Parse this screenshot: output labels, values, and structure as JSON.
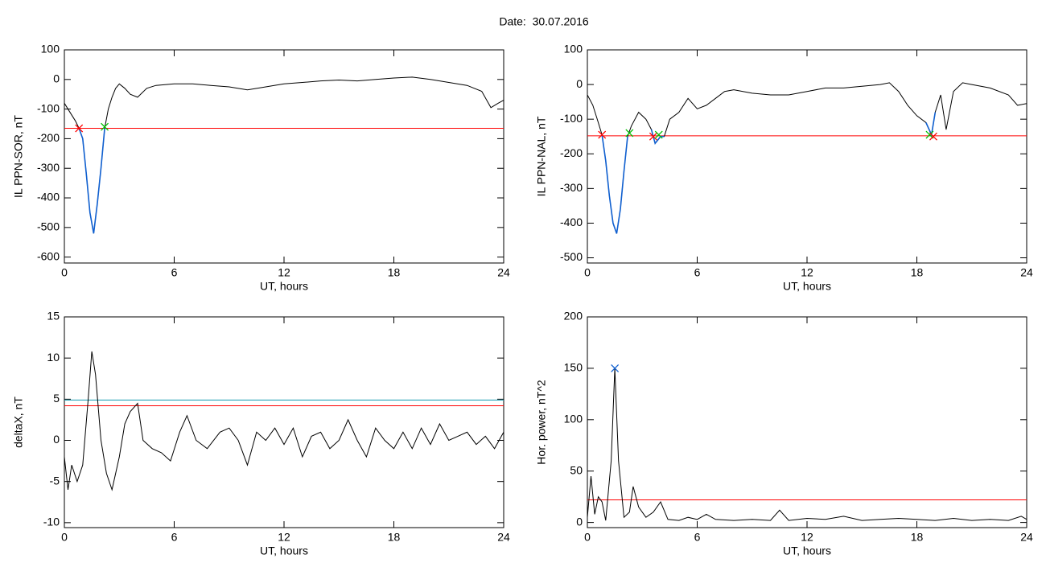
{
  "title": "Date:  30.07.2016",
  "chart_data": [
    {
      "type": "line",
      "ylabel": "IL PPN-SOR, nT",
      "xlabel": "UT, hours",
      "xlim": [
        0,
        24
      ],
      "xticks": [
        0,
        6,
        12,
        18,
        24
      ],
      "ylim": [
        -620,
        100
      ],
      "yticks": [
        100,
        0,
        -100,
        -200,
        -300,
        -400,
        -500,
        -600
      ],
      "x": [
        0,
        0.3,
        0.6,
        0.8,
        1.0,
        1.2,
        1.4,
        1.6,
        1.8,
        2.0,
        2.2,
        2.4,
        2.6,
        2.8,
        3.0,
        3.3,
        3.6,
        4.0,
        4.5,
        5,
        6,
        7,
        8,
        9,
        10,
        11,
        12,
        13,
        14,
        15,
        16,
        17,
        18,
        19,
        20,
        21,
        22,
        22.8,
        23.3,
        23.7,
        24
      ],
      "series": [
        {
          "color": "#000000",
          "values": [
            -80,
            -110,
            -140,
            -165,
            -200,
            -320,
            -450,
            -520,
            -420,
            -300,
            -165,
            -100,
            -60,
            -30,
            -15,
            -30,
            -50,
            -60,
            -30,
            -20,
            -15,
            -15,
            -20,
            -25,
            -35,
            -25,
            -15,
            -10,
            -5,
            -2,
            -5,
            0,
            5,
            8,
            0,
            -10,
            -20,
            -40,
            -95,
            -80,
            -70
          ]
        },
        {
          "color": "#1060d0",
          "values": [
            null,
            null,
            null,
            -165,
            -200,
            -320,
            -450,
            -520,
            -420,
            -300,
            -165,
            null,
            null,
            null,
            null,
            null,
            null,
            null,
            null,
            null,
            null,
            null,
            null,
            null,
            null,
            null,
            null,
            null,
            null,
            null,
            null,
            null,
            null,
            null,
            null,
            null,
            null,
            null,
            null,
            null,
            null
          ]
        }
      ],
      "hlines": [
        {
          "value": -165,
          "color": "#ff0000"
        }
      ],
      "markers": [
        {
          "x": 0.8,
          "y": -165,
          "color": "#ff0000"
        },
        {
          "x": 2.2,
          "y": -160,
          "color": "#00c000"
        }
      ]
    },
    {
      "type": "line",
      "ylabel": "IL PPN-NAL, nT",
      "xlabel": "UT, hours",
      "xlim": [
        0,
        24
      ],
      "xticks": [
        0,
        6,
        12,
        18,
        24
      ],
      "ylim": [
        -515,
        100
      ],
      "yticks": [
        100,
        0,
        -100,
        -200,
        -300,
        -400,
        -500
      ],
      "x": [
        0,
        0.3,
        0.6,
        0.8,
        1.0,
        1.2,
        1.4,
        1.6,
        1.8,
        2.0,
        2.2,
        2.4,
        2.8,
        3.2,
        3.5,
        3.7,
        4.0,
        4.2,
        4.5,
        5,
        5.5,
        6,
        6.5,
        7,
        7.5,
        8,
        9,
        10,
        11,
        12,
        13,
        14,
        15,
        16,
        16.5,
        17,
        17.5,
        18,
        18.5,
        18.8,
        19,
        19.3,
        19.6,
        20,
        20.5,
        21,
        22,
        23,
        23.5,
        24
      ],
      "series": [
        {
          "color": "#000000",
          "values": [
            -30,
            -60,
            -110,
            -145,
            -220,
            -320,
            -400,
            -430,
            -360,
            -250,
            -150,
            -120,
            -80,
            -100,
            -130,
            -170,
            -150,
            -150,
            -100,
            -80,
            -40,
            -70,
            -60,
            -40,
            -20,
            -15,
            -25,
            -30,
            -30,
            -20,
            -10,
            -10,
            -5,
            0,
            5,
            -20,
            -60,
            -90,
            -110,
            -145,
            -80,
            -30,
            -130,
            -20,
            5,
            0,
            -10,
            -30,
            -60,
            -55
          ]
        },
        {
          "color": "#1060d0",
          "values": [
            null,
            null,
            null,
            -145,
            -220,
            -320,
            -400,
            -430,
            -360,
            -250,
            -150,
            null,
            null,
            null,
            -130,
            -170,
            -150,
            -150,
            null,
            null,
            null,
            null,
            null,
            null,
            null,
            null,
            null,
            null,
            null,
            null,
            null,
            null,
            null,
            null,
            null,
            null,
            null,
            null,
            -110,
            -145,
            -80,
            null,
            null,
            null,
            null,
            null,
            null,
            null,
            null,
            null
          ]
        }
      ],
      "hlines": [
        {
          "value": -148,
          "color": "#ff0000"
        }
      ],
      "markers": [
        {
          "x": 0.8,
          "y": -145,
          "color": "#ff0000"
        },
        {
          "x": 2.3,
          "y": -140,
          "color": "#00c000"
        },
        {
          "x": 3.6,
          "y": -150,
          "color": "#ff0000"
        },
        {
          "x": 3.9,
          "y": -145,
          "color": "#00c000"
        },
        {
          "x": 18.7,
          "y": -145,
          "color": "#00c000"
        },
        {
          "x": 18.9,
          "y": -150,
          "color": "#ff0000"
        }
      ]
    },
    {
      "type": "line",
      "ylabel": "deltaX, nT",
      "xlabel": "UT, hours",
      "xlim": [
        0,
        24
      ],
      "xticks": [
        0,
        6,
        12,
        18,
        24
      ],
      "ylim": [
        -10.6,
        15
      ],
      "yticks": [
        15,
        10,
        5,
        0,
        -5,
        -10
      ],
      "x": [
        0,
        0.2,
        0.4,
        0.7,
        1.0,
        1.3,
        1.5,
        1.7,
        2.0,
        2.3,
        2.6,
        3.0,
        3.3,
        3.6,
        4.0,
        4.3,
        4.8,
        5.3,
        5.8,
        6.3,
        6.7,
        7.2,
        7.8,
        8.5,
        9,
        9.5,
        10,
        10.5,
        11,
        11.5,
        12,
        12.5,
        13,
        13.5,
        14,
        14.5,
        15,
        15.5,
        16,
        16.5,
        17,
        17.5,
        18,
        18.5,
        19,
        19.5,
        20,
        20.5,
        21,
        21.5,
        22,
        22.5,
        23,
        23.5,
        24
      ],
      "series": [
        {
          "color": "#000000",
          "values": [
            -2,
            -6,
            -3,
            -5,
            -3,
            5,
            10.8,
            8,
            0,
            -4,
            -6,
            -2,
            2,
            3.5,
            4.5,
            0,
            -1,
            -1.5,
            -2.5,
            1,
            3,
            0,
            -1,
            1,
            1.5,
            0,
            -3,
            1,
            0,
            1.5,
            -0.5,
            1.5,
            -2,
            0.5,
            1,
            -1,
            0,
            2.5,
            0,
            -2,
            1.5,
            0,
            -1,
            1,
            -1,
            1.5,
            -0.5,
            2,
            0,
            0.5,
            1,
            -0.5,
            0.5,
            -1,
            1
          ]
        }
      ],
      "hlines": [
        {
          "value": 4.2,
          "color": "#ff0000"
        },
        {
          "value": 4.9,
          "color": "#109ab0"
        }
      ],
      "markers": []
    },
    {
      "type": "line",
      "ylabel": "Hor. power, nT^2",
      "xlabel": "UT, hours",
      "xlim": [
        0,
        24
      ],
      "xticks": [
        0,
        6,
        12,
        18,
        24
      ],
      "ylim": [
        -5,
        200
      ],
      "yticks": [
        200,
        150,
        100,
        50,
        0
      ],
      "x": [
        0,
        0.2,
        0.4,
        0.6,
        0.8,
        1.0,
        1.3,
        1.5,
        1.7,
        2.0,
        2.3,
        2.5,
        2.8,
        3.2,
        3.6,
        4.0,
        4.4,
        5,
        5.5,
        6,
        6.5,
        7,
        8,
        9,
        10,
        10.5,
        11,
        12,
        13,
        14,
        15,
        16,
        17,
        18,
        19,
        20,
        21,
        22,
        23,
        23.7,
        24
      ],
      "series": [
        {
          "color": "#000000",
          "values": [
            5,
            45,
            8,
            25,
            20,
            2,
            60,
            150,
            60,
            5,
            10,
            35,
            15,
            5,
            10,
            20,
            3,
            2,
            5,
            3,
            8,
            3,
            2,
            3,
            2,
            12,
            2,
            4,
            3,
            6,
            2,
            3,
            4,
            3,
            2,
            4,
            2,
            3,
            2,
            6,
            3
          ]
        }
      ],
      "hlines": [
        {
          "value": 22,
          "color": "#ff0000"
        }
      ],
      "markers": [
        {
          "x": 1.5,
          "y": 150,
          "color": "#1060d0"
        }
      ]
    }
  ]
}
